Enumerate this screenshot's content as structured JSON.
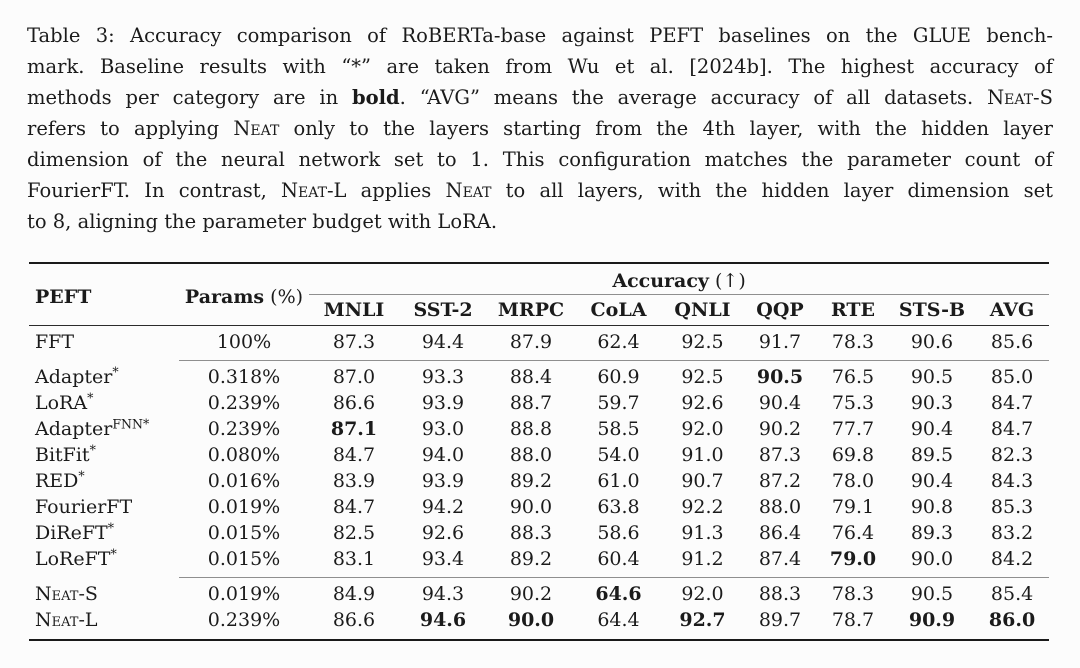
{
  "caption": {
    "lines": [
      [
        {
          "t": "Table 3: Accuracy comparison of RoBERTa-base against PEFT baselines on the GLUE bench-"
        }
      ],
      [
        {
          "t": "mark. Baseline results with “*” are taken from Wu et al. [2024b]. The highest accuracy of"
        }
      ],
      [
        {
          "t": "methods per category are in "
        },
        {
          "t": "bold",
          "b": true
        },
        {
          "t": ". “AVG” means the average accuracy of all datasets. "
        },
        {
          "t": "Neat",
          "sc": true
        },
        {
          "t": "-S"
        }
      ],
      [
        {
          "t": "refers to applying "
        },
        {
          "t": "Neat",
          "sc": true
        },
        {
          "t": " only to the layers starting from the 4th layer, with the hidden layer"
        }
      ],
      [
        {
          "t": "dimension of the neural network set to 1. This configuration matches the parameter count of"
        }
      ],
      [
        {
          "t": "FourierFT. In contrast, "
        },
        {
          "t": "Neat",
          "sc": true
        },
        {
          "t": "-L applies "
        },
        {
          "t": "Neat",
          "sc": true
        },
        {
          "t": " to all layers, with the hidden layer dimension set"
        }
      ],
      [
        {
          "t": "to 8, aligning the parameter budget with LoRA."
        }
      ]
    ]
  },
  "table": {
    "header": {
      "peft": "PEFT",
      "params_bold": "Params",
      "params_rest": " (%)",
      "accuracy_bold": "Accuracy",
      "accuracy_rest": " (↑)",
      "columns": [
        "MNLI",
        "SST-2",
        "MRPC",
        "CoLA",
        "QNLI",
        "QQP",
        "RTE",
        "STS-B",
        "AVG"
      ]
    },
    "groups": [
      {
        "rows": [
          {
            "name": [
              {
                "t": "FFT"
              }
            ],
            "params": "100%",
            "values": [
              "87.3",
              "94.4",
              "87.9",
              "62.4",
              "92.5",
              "91.7",
              "78.3",
              "90.6",
              "85.6"
            ],
            "bold": []
          }
        ]
      },
      {
        "rows": [
          {
            "name": [
              {
                "t": "Adapter"
              },
              {
                "t": "*",
                "sup": true
              }
            ],
            "params": "0.318%",
            "values": [
              "87.0",
              "93.3",
              "88.4",
              "60.9",
              "92.5",
              "90.5",
              "76.5",
              "90.5",
              "85.0"
            ],
            "bold": [
              5
            ]
          },
          {
            "name": [
              {
                "t": "LoRA"
              },
              {
                "t": "*",
                "sup": true
              }
            ],
            "params": "0.239%",
            "values": [
              "86.6",
              "93.9",
              "88.7",
              "59.7",
              "92.6",
              "90.4",
              "75.3",
              "90.3",
              "84.7"
            ],
            "bold": []
          },
          {
            "name": [
              {
                "t": "Adapter"
              },
              {
                "t": "FNN*",
                "sup": true
              }
            ],
            "params": "0.239%",
            "values": [
              "87.1",
              "93.0",
              "88.8",
              "58.5",
              "92.0",
              "90.2",
              "77.7",
              "90.4",
              "84.7"
            ],
            "bold": [
              0
            ]
          },
          {
            "name": [
              {
                "t": "BitFit"
              },
              {
                "t": "*",
                "sup": true
              }
            ],
            "params": "0.080%",
            "values": [
              "84.7",
              "94.0",
              "88.0",
              "54.0",
              "91.0",
              "87.3",
              "69.8",
              "89.5",
              "82.3"
            ],
            "bold": []
          },
          {
            "name": [
              {
                "t": "RED"
              },
              {
                "t": "*",
                "sup": true
              }
            ],
            "params": "0.016%",
            "values": [
              "83.9",
              "93.9",
              "89.2",
              "61.0",
              "90.7",
              "87.2",
              "78.0",
              "90.4",
              "84.3"
            ],
            "bold": []
          },
          {
            "name": [
              {
                "t": "FourierFT"
              }
            ],
            "params": "0.019%",
            "values": [
              "84.7",
              "94.2",
              "90.0",
              "63.8",
              "92.2",
              "88.0",
              "79.1",
              "90.8",
              "85.3"
            ],
            "bold": []
          },
          {
            "name": [
              {
                "t": "DiReFT"
              },
              {
                "t": "*",
                "sup": true
              }
            ],
            "params": "0.015%",
            "values": [
              "82.5",
              "92.6",
              "88.3",
              "58.6",
              "91.3",
              "86.4",
              "76.4",
              "89.3",
              "83.2"
            ],
            "bold": []
          },
          {
            "name": [
              {
                "t": "LoReFT"
              },
              {
                "t": "*",
                "sup": true
              }
            ],
            "params": "0.015%",
            "values": [
              "83.1",
              "93.4",
              "89.2",
              "60.4",
              "91.2",
              "87.4",
              "79.0",
              "90.0",
              "84.2"
            ],
            "bold": [
              6
            ]
          }
        ]
      },
      {
        "rows": [
          {
            "name": [
              {
                "t": "Neat",
                "sc": true
              },
              {
                "t": "-S"
              }
            ],
            "params": "0.019%",
            "values": [
              "84.9",
              "94.3",
              "90.2",
              "64.6",
              "92.0",
              "88.3",
              "78.3",
              "90.5",
              "85.4"
            ],
            "bold": [
              3
            ]
          },
          {
            "name": [
              {
                "t": "Neat",
                "sc": true
              },
              {
                "t": "-L"
              }
            ],
            "params": "0.239%",
            "values": [
              "86.6",
              "94.6",
              "90.0",
              "64.4",
              "92.7",
              "89.7",
              "78.7",
              "90.9",
              "86.0"
            ],
            "bold": [
              1,
              2,
              4,
              7,
              8
            ]
          }
        ]
      }
    ]
  }
}
